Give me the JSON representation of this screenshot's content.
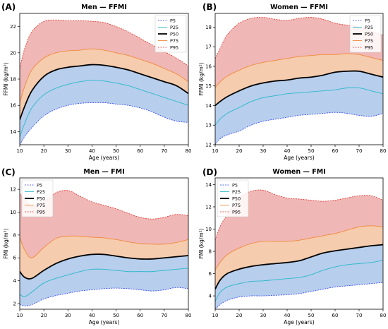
{
  "colors": {
    "P5": "#2b3ef0",
    "P25": "#2bb8c8",
    "P50": "#000000",
    "P75": "#f08a3c",
    "P95": "#e0322e",
    "band_low": "#aac6ea",
    "band_mid": "#f4c3a0",
    "band_high": "#ecaaa8"
  },
  "chart_data": [
    {
      "type": "line",
      "panel": "(A)",
      "title": "Men — FFMI",
      "xlabel": "Age (years)",
      "ylabel": "FFMI (kg/m²)",
      "xlim": [
        10,
        80
      ],
      "ylim": [
        13,
        23
      ],
      "xticks": [
        10,
        20,
        30,
        40,
        50,
        60,
        70,
        80
      ],
      "yticks": [
        14,
        16,
        18,
        20,
        22
      ],
      "legend": "top-right",
      "x": [
        10,
        12,
        15,
        20,
        25,
        30,
        35,
        40,
        45,
        50,
        55,
        60,
        65,
        70,
        75,
        80
      ],
      "series": [
        {
          "name": "P5",
          "values": [
            13.0,
            13.6,
            14.3,
            15.2,
            15.7,
            16.0,
            16.15,
            16.2,
            16.2,
            16.1,
            16.0,
            15.8,
            15.5,
            15.1,
            14.8,
            14.7
          ]
        },
        {
          "name": "P25",
          "values": [
            13.6,
            14.6,
            15.8,
            16.8,
            17.3,
            17.6,
            17.8,
            17.9,
            17.85,
            17.7,
            17.5,
            17.2,
            16.9,
            16.6,
            16.3,
            16.0
          ]
        },
        {
          "name": "P50",
          "values": [
            14.9,
            15.9,
            17.1,
            18.2,
            18.7,
            18.9,
            19.0,
            19.1,
            19.05,
            18.9,
            18.7,
            18.4,
            18.1,
            17.8,
            17.5,
            16.9
          ]
        },
        {
          "name": "P75",
          "values": [
            16.2,
            17.4,
            18.7,
            19.6,
            20.0,
            20.15,
            20.2,
            20.3,
            20.2,
            20.0,
            19.8,
            19.5,
            19.2,
            18.8,
            18.4,
            17.8
          ]
        },
        {
          "name": "P95",
          "values": [
            18.8,
            20.3,
            21.6,
            22.4,
            22.5,
            22.45,
            22.45,
            22.4,
            22.3,
            22.0,
            21.6,
            21.1,
            20.6,
            20.1,
            19.6,
            19.0
          ]
        }
      ]
    },
    {
      "type": "line",
      "panel": "(B)",
      "title": "Women — FFMI",
      "xlabel": "Age (years)",
      "ylabel": "FFMI (kg/m²)",
      "xlim": [
        10,
        80
      ],
      "ylim": [
        12,
        18.7
      ],
      "xticks": [
        10,
        20,
        30,
        40,
        50,
        60,
        70,
        80
      ],
      "yticks": [
        12,
        13,
        14,
        15,
        16,
        17,
        18
      ],
      "legend": "top-right",
      "x": [
        10,
        12,
        15,
        20,
        25,
        30,
        35,
        40,
        45,
        50,
        55,
        60,
        65,
        70,
        75,
        80
      ],
      "series": [
        {
          "name": "P5",
          "values": [
            12.0,
            12.3,
            12.5,
            12.7,
            13.0,
            13.2,
            13.3,
            13.4,
            13.5,
            13.55,
            13.6,
            13.65,
            13.6,
            13.5,
            13.45,
            13.6
          ]
        },
        {
          "name": "P25",
          "values": [
            13.0,
            13.3,
            13.6,
            13.9,
            14.2,
            14.4,
            14.5,
            14.6,
            14.65,
            14.7,
            14.75,
            14.8,
            14.9,
            14.9,
            14.75,
            14.6
          ]
        },
        {
          "name": "P50",
          "values": [
            14.0,
            14.2,
            14.45,
            14.75,
            15.0,
            15.15,
            15.25,
            15.3,
            15.4,
            15.45,
            15.55,
            15.7,
            15.75,
            15.75,
            15.6,
            15.45
          ]
        },
        {
          "name": "P75",
          "values": [
            14.9,
            15.2,
            15.5,
            15.8,
            16.05,
            16.2,
            16.3,
            16.4,
            16.5,
            16.55,
            16.6,
            16.6,
            16.65,
            16.6,
            16.45,
            16.3
          ]
        },
        {
          "name": "P95",
          "values": [
            16.4,
            16.9,
            17.6,
            18.2,
            18.45,
            18.5,
            18.4,
            18.35,
            18.45,
            18.5,
            18.4,
            18.2,
            18.1,
            18.0,
            17.8,
            17.6
          ]
        }
      ]
    },
    {
      "type": "line",
      "panel": "(C)",
      "title": "Men — FMI",
      "xlabel": "Age (years)",
      "ylabel": "FMI (kg/m²)",
      "xlim": [
        10,
        80
      ],
      "ylim": [
        1.5,
        13
      ],
      "xticks": [
        10,
        20,
        30,
        40,
        50,
        60,
        70,
        80
      ],
      "yticks": [
        2,
        4,
        6,
        8,
        10,
        12
      ],
      "legend": "top-left",
      "x": [
        10,
        12,
        15,
        20,
        25,
        30,
        35,
        40,
        45,
        50,
        55,
        60,
        65,
        70,
        75,
        80
      ],
      "series": [
        {
          "name": "P5",
          "values": [
            1.9,
            1.8,
            1.9,
            2.4,
            2.7,
            2.9,
            3.1,
            3.2,
            3.3,
            3.35,
            3.3,
            3.2,
            3.1,
            3.2,
            3.4,
            3.3
          ]
        },
        {
          "name": "P25",
          "values": [
            2.8,
            2.6,
            3.0,
            3.8,
            4.2,
            4.5,
            4.8,
            5.0,
            5.0,
            4.9,
            4.8,
            4.8,
            4.8,
            4.9,
            5.0,
            5.1
          ]
        },
        {
          "name": "P50",
          "values": [
            4.8,
            4.3,
            4.2,
            4.9,
            5.5,
            5.9,
            6.15,
            6.3,
            6.3,
            6.15,
            6.0,
            5.9,
            5.9,
            6.0,
            6.1,
            6.2
          ]
        },
        {
          "name": "P75",
          "values": [
            7.8,
            6.7,
            6.0,
            6.9,
            7.7,
            7.9,
            7.9,
            7.8,
            7.75,
            7.6,
            7.4,
            7.25,
            7.2,
            7.2,
            7.35,
            7.6
          ]
        },
        {
          "name": "P95",
          "values": [
            11.6,
            11.2,
            10.5,
            10.9,
            11.7,
            11.9,
            11.4,
            10.9,
            10.6,
            10.3,
            9.9,
            9.55,
            9.4,
            9.55,
            9.8,
            9.7
          ]
        }
      ]
    },
    {
      "type": "line",
      "panel": "(D)",
      "title": "Women — FMI",
      "xlabel": "Age (years)",
      "ylabel": "FMI (kg/m²)",
      "xlim": [
        10,
        80
      ],
      "ylim": [
        2.8,
        14.6
      ],
      "xticks": [
        10,
        20,
        30,
        40,
        50,
        60,
        70,
        80
      ],
      "yticks": [
        4,
        6,
        8,
        10,
        12,
        14
      ],
      "legend": "top-left",
      "x": [
        10,
        12,
        15,
        20,
        25,
        30,
        35,
        40,
        45,
        50,
        55,
        60,
        65,
        70,
        75,
        80
      ],
      "series": [
        {
          "name": "P5",
          "values": [
            2.8,
            3.2,
            3.6,
            3.9,
            4.0,
            4.0,
            4.05,
            4.1,
            4.2,
            4.4,
            4.6,
            4.8,
            4.9,
            5.0,
            5.1,
            5.2
          ]
        },
        {
          "name": "P25",
          "values": [
            3.5,
            4.3,
            4.8,
            5.1,
            5.3,
            5.35,
            5.45,
            5.55,
            5.65,
            5.9,
            6.3,
            6.6,
            6.8,
            6.9,
            7.0,
            7.2
          ]
        },
        {
          "name": "P50",
          "values": [
            4.6,
            5.4,
            6.0,
            6.4,
            6.65,
            6.8,
            6.9,
            7.0,
            7.15,
            7.5,
            7.85,
            8.05,
            8.2,
            8.35,
            8.5,
            8.6
          ]
        },
        {
          "name": "P75",
          "values": [
            6.3,
            7.0,
            7.7,
            8.3,
            8.7,
            8.9,
            8.9,
            8.9,
            9.0,
            9.2,
            9.4,
            9.6,
            9.9,
            10.2,
            10.3,
            10.2
          ]
        },
        {
          "name": "P95",
          "values": [
            9.0,
            10.2,
            11.3,
            12.8,
            13.4,
            13.5,
            13.1,
            12.8,
            12.7,
            12.6,
            12.5,
            12.6,
            12.8,
            13.0,
            13.0,
            12.6
          ]
        }
      ]
    }
  ]
}
